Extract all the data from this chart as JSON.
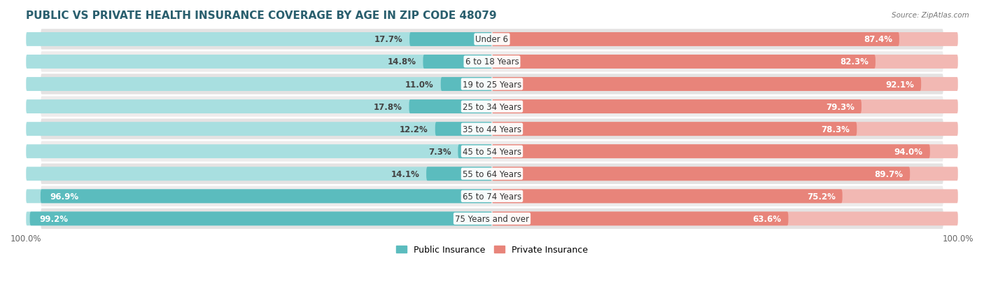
{
  "title": "PUBLIC VS PRIVATE HEALTH INSURANCE COVERAGE BY AGE IN ZIP CODE 48079",
  "source": "Source: ZipAtlas.com",
  "categories": [
    "Under 6",
    "6 to 18 Years",
    "19 to 25 Years",
    "25 to 34 Years",
    "35 to 44 Years",
    "45 to 54 Years",
    "55 to 64 Years",
    "65 to 74 Years",
    "75 Years and over"
  ],
  "public_values": [
    17.7,
    14.8,
    11.0,
    17.8,
    12.2,
    7.3,
    14.1,
    96.9,
    99.2
  ],
  "private_values": [
    87.4,
    82.3,
    92.1,
    79.3,
    78.3,
    94.0,
    89.7,
    75.2,
    63.6
  ],
  "public_color": "#5bbcbe",
  "private_color": "#e8847a",
  "public_color_light": "#a8dfe0",
  "private_color_light": "#f2b8b3",
  "bar_bg_color": "#e8e4e4",
  "bar_height": 0.62,
  "row_bg_colors": [
    "#e4e2e2",
    "#eeecec"
  ],
  "max_value": 100.0,
  "title_fontsize": 11,
  "label_fontsize": 8.5,
  "value_fontsize": 8.5,
  "legend_fontsize": 9.0,
  "axis_label_fontsize": 8.5
}
